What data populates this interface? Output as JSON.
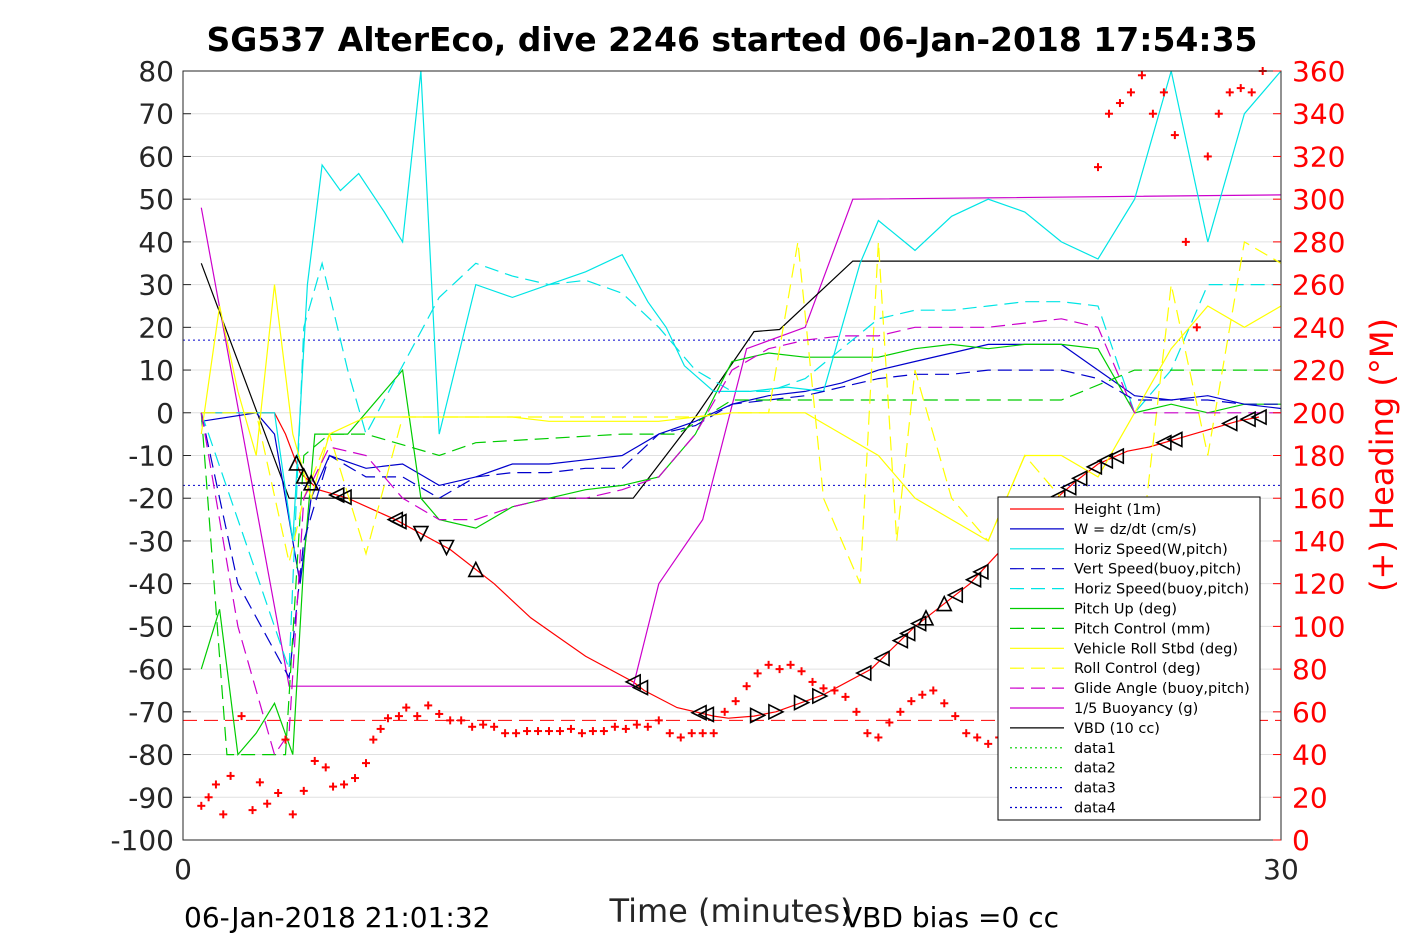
{
  "title": "SG537 AlterEco, dive 2246 started 06-Jan-2018 17:54:35",
  "footer": {
    "end_time": "06-Jan-2018 21:01:32",
    "vbd_bias": "VBD bias =0 cc"
  },
  "chart_data": {
    "type": "line",
    "xlabel": "Time (minutes)",
    "ylabel_right": "(+) Heading (°M)",
    "xlim": [
      0,
      30
    ],
    "ylim": [
      -100,
      80
    ],
    "ylim_right": [
      0,
      360
    ],
    "x_ticks": [
      "0",
      "30"
    ],
    "y_ticks": [
      "80",
      "70",
      "60",
      "50",
      "40",
      "30",
      "20",
      "10",
      "0",
      "-10",
      "-20",
      "-30",
      "-40",
      "-50",
      "-60",
      "-70",
      "-80",
      "-90",
      "-100"
    ],
    "y_tick_values": [
      80,
      70,
      60,
      50,
      40,
      30,
      20,
      10,
      0,
      -10,
      -20,
      -30,
      -40,
      -50,
      -60,
      -70,
      -80,
      -90,
      -100
    ],
    "y_right_ticks": [
      "360",
      "340",
      "320",
      "300",
      "280",
      "260",
      "240",
      "220",
      "200",
      "180",
      "160",
      "140",
      "120",
      "100",
      "80",
      "60",
      "40",
      "20",
      "0"
    ],
    "y_right_tick_values": [
      360,
      340,
      320,
      300,
      280,
      260,
      240,
      220,
      200,
      180,
      160,
      140,
      120,
      100,
      80,
      60,
      40,
      20,
      0
    ],
    "grid": true,
    "legend_position": "bottom-right",
    "legend": [
      {
        "label": "Height (1m)",
        "color": "#ff0000",
        "dash": "solid"
      },
      {
        "label": "W = dz/dt (cm/s)",
        "color": "#0000cc",
        "dash": "solid"
      },
      {
        "label": "Horiz Speed(W,pitch)",
        "color": "#00e5e5",
        "dash": "solid"
      },
      {
        "label": "Vert Speed(buoy,pitch)",
        "color": "#0000cc",
        "dash": "long"
      },
      {
        "label": "Horiz Speed(buoy,pitch)",
        "color": "#00e5e5",
        "dash": "long"
      },
      {
        "label": "Pitch Up (deg)",
        "color": "#00cc00",
        "dash": "solid"
      },
      {
        "label": "Pitch Control (mm)",
        "color": "#00cc00",
        "dash": "long"
      },
      {
        "label": "Vehicle Roll Stbd (deg)",
        "color": "#ffff00",
        "dash": "solid"
      },
      {
        "label": "Roll Control (deg)",
        "color": "#ffff00",
        "dash": "long"
      },
      {
        "label": "Glide Angle (buoy,pitch)",
        "color": "#cc00cc",
        "dash": "long"
      },
      {
        "label": "1/5 Buoyancy (g)",
        "color": "#cc00cc",
        "dash": "solid"
      },
      {
        "label": "VBD (10 cc)",
        "color": "#000000",
        "dash": "solid"
      },
      {
        "label": "data1",
        "color": "#00cc00",
        "dash": "dot"
      },
      {
        "label": "data2",
        "color": "#00cc00",
        "dash": "dot"
      },
      {
        "label": "data3",
        "color": "#0000cc",
        "dash": "dot"
      },
      {
        "label": "data4",
        "color": "#0000cc",
        "dash": "dot"
      }
    ],
    "series": [
      {
        "name": "Height (1m)",
        "color": "#ff0000",
        "dash": "solid",
        "axis": "left",
        "x": [
          0.5,
          2.5,
          2.8,
          3.2,
          3.7,
          4.5,
          5.8,
          7.3,
          8.5,
          9.5,
          11.0,
          12.3,
          12.6,
          13.5,
          14.5,
          14.9,
          15.6,
          16.2,
          17.5,
          18.8,
          20.0,
          21.5,
          22.8,
          24.4,
          25.0,
          25.8,
          26.4,
          27.2,
          28.8,
          29.4
        ],
        "y": [
          0,
          0,
          -5,
          -14,
          -18,
          -20,
          -25,
          -32,
          -40,
          -48,
          -57,
          -63,
          -65,
          -69,
          -71,
          -71.5,
          -71,
          -70,
          -66,
          -60,
          -50,
          -40,
          -28,
          -16,
          -12,
          -9,
          -8,
          -6,
          -2,
          -1
        ]
      },
      {
        "name": "1/5 Buoyancy (g)",
        "color": "#cc00cc",
        "dash": "solid",
        "axis": "left",
        "x": [
          0.5,
          2.9,
          12.3,
          13.0,
          14.2,
          15.4,
          17.0,
          18.3,
          30.0
        ],
        "y": [
          48,
          -64,
          -64,
          -40,
          -25,
          15,
          20,
          50,
          51
        ]
      },
      {
        "name": "VBD (10 cc)",
        "color": "#000000",
        "dash": "solid",
        "axis": "left",
        "x": [
          0.5,
          2.9,
          12.3,
          14.0,
          15.6,
          16.3,
          18.3,
          30.0
        ],
        "y": [
          35,
          -20,
          -20,
          -1,
          19,
          19.5,
          35.5,
          35.5
        ]
      },
      {
        "name": "W = dz/dt (cm/s)",
        "color": "#0000cc",
        "dash": "solid",
        "axis": "left",
        "x": [
          0.5,
          2.0,
          2.5,
          3.2,
          3.5,
          4.0,
          5.0,
          6.0,
          7.0,
          8.0,
          9.0,
          10.0,
          11.0,
          12.0,
          13.0,
          14.0,
          15.0,
          16.0,
          17.0,
          18.0,
          19.0,
          20.0,
          21.0,
          22.0,
          23.0,
          24.0,
          25.0,
          26.0,
          27.0,
          28.0,
          29.0,
          30.0
        ],
        "y": [
          -2,
          0,
          -5,
          -40,
          -20,
          -10,
          -13,
          -12,
          -17,
          -15,
          -12,
          -12,
          -11,
          -10,
          -5,
          -2,
          2,
          4,
          5,
          7,
          10,
          12,
          14,
          16,
          16,
          16,
          10,
          4,
          3,
          4,
          2,
          1
        ]
      },
      {
        "name": "Pitch Up (deg)",
        "color": "#00cc00",
        "dash": "solid",
        "axis": "left",
        "x": [
          0.5,
          1.0,
          1.5,
          2.0,
          2.5,
          3.0,
          3.3,
          3.6,
          4.5,
          5.5,
          6.0,
          6.5,
          7.0,
          8.0,
          9.0,
          10.0,
          11.0,
          12.0,
          13.0,
          14.0,
          15.0,
          16.0,
          17.0,
          18.0,
          19.0,
          20.0,
          21.0,
          22.0,
          23.0,
          24.0,
          25.0,
          26.0,
          27.0,
          28.0,
          29.0,
          30.0
        ],
        "y": [
          -60,
          -46,
          -80,
          -75,
          -68,
          -80,
          -35,
          -5,
          -5,
          5,
          10,
          -20,
          -25,
          -27,
          -22,
          -20,
          -18,
          -17,
          -15,
          -5,
          12,
          14,
          13,
          13,
          13,
          15,
          16,
          15,
          16,
          16,
          15,
          0,
          2,
          0,
          2,
          2
        ]
      },
      {
        "name": "Horiz Speed(W,pitch)",
        "color": "#00e5e5",
        "dash": "solid",
        "axis": "left",
        "x": [
          0.5,
          2.5,
          3.0,
          3.4,
          3.8,
          4.3,
          4.8,
          5.5,
          6.0,
          6.5,
          7.0,
          8.0,
          9.0,
          10.0,
          11.0,
          12.0,
          12.7,
          13.2,
          13.7,
          14.5,
          15.5,
          16.5,
          17.5,
          18.0,
          18.5,
          19.0,
          20.0,
          21.0,
          22.0,
          23.0,
          24.0,
          25.0,
          26.0,
          27.0,
          28.0,
          29.0,
          30.0
        ],
        "y": [
          0,
          0,
          -30,
          30,
          58,
          52,
          56,
          47,
          40,
          80,
          -5,
          30,
          27,
          30,
          33,
          37,
          26,
          20,
          11,
          5,
          5,
          6,
          5,
          20,
          35,
          45,
          38,
          46,
          50,
          47,
          40,
          36,
          50,
          80,
          40,
          70,
          80
        ]
      },
      {
        "name": "Horiz Speed(buoy,pitch)",
        "color": "#00e5e5",
        "dash": "long",
        "axis": "left",
        "x": [
          0.5,
          2.9,
          3.3,
          3.8,
          4.5,
          5.0,
          7.0,
          8.0,
          9.0,
          10.0,
          11.0,
          12.0,
          13.0,
          14.0,
          15.0,
          16.0,
          17.0,
          18.0,
          19.0,
          20.0,
          21.0,
          22.0,
          23.0,
          24.0,
          25.0,
          26.0,
          27.0,
          28.0,
          29.0,
          30.0
        ],
        "y": [
          0,
          -60,
          20,
          35,
          10,
          -5,
          27,
          35,
          32,
          30,
          31,
          28,
          20,
          10,
          5,
          5,
          8,
          15,
          22,
          24,
          24,
          25,
          26,
          26,
          25,
          0,
          10,
          30,
          30,
          30
        ]
      },
      {
        "name": "Vert Speed(buoy,pitch)",
        "color": "#0000cc",
        "dash": "long",
        "axis": "left",
        "x": [
          0.5,
          1.5,
          2.9,
          3.3,
          4.0,
          5.0,
          6.0,
          7.0,
          8.0,
          9.0,
          10.0,
          11.0,
          12.0,
          13.0,
          14.0,
          15.0,
          16.0,
          17.0,
          18.0,
          19.0,
          20.0,
          21.0,
          22.0,
          23.0,
          24.0,
          25.0,
          26.0,
          27.0,
          28.0,
          29.0,
          30.0
        ],
        "y": [
          0,
          -40,
          -62,
          -30,
          -10,
          -15,
          -15,
          -20,
          -15,
          -14,
          -14,
          -13,
          -13,
          -5,
          -3,
          2,
          3,
          4,
          6,
          8,
          9,
          9,
          10,
          10,
          10,
          8,
          3,
          3,
          3,
          2,
          2
        ]
      },
      {
        "name": "Pitch Control (mm)",
        "color": "#00cc00",
        "dash": "long",
        "axis": "left",
        "x": [
          0.5,
          1.2,
          2.8,
          3.3,
          4.0,
          5.0,
          7.0,
          8.0,
          10.0,
          12.0,
          13.5,
          15.0,
          16.0,
          18.0,
          20.0,
          22.0,
          24.0,
          26.0,
          28.0,
          30.0
        ],
        "y": [
          0,
          -80,
          -80,
          -10,
          -5,
          -5,
          -10,
          -7,
          -6,
          -5,
          -5,
          3,
          3,
          3,
          3,
          3,
          3,
          10,
          10,
          10
        ]
      },
      {
        "name": "Vehicle Roll Stbd (deg)",
        "color": "#ffff00",
        "dash": "solid",
        "axis": "left",
        "x": [
          0.5,
          1.0,
          1.5,
          2.0,
          2.5,
          3.0,
          3.5,
          4.0,
          5.0,
          6.0,
          7.0,
          8.0,
          9.0,
          10.0,
          11.0,
          12.0,
          13.0,
          14.0,
          15.0,
          16.0,
          17.0,
          18.0,
          19.0,
          20.0,
          21.0,
          22.0,
          23.0,
          24.0,
          25.0,
          26.0,
          27.0,
          28.0,
          29.0,
          30.0
        ],
        "y": [
          -5,
          25,
          5,
          -10,
          30,
          -5,
          -20,
          -5,
          -1,
          -1,
          -1,
          -1,
          -1,
          -2,
          -2,
          -2,
          -2,
          -1,
          0,
          0,
          0,
          -5,
          -10,
          -20,
          -25,
          -30,
          -10,
          -10,
          -15,
          0,
          15,
          25,
          20,
          25
        ]
      },
      {
        "name": "Roll Control (deg)",
        "color": "#ffff00",
        "dash": "long",
        "axis": "left",
        "x": [
          0.5,
          2.0,
          2.9,
          3.3,
          4.0,
          5.0,
          6.0,
          8.0,
          10.0,
          12.0,
          14.0,
          15.0,
          16.0,
          16.8,
          17.5,
          18.5,
          19.0,
          19.5,
          20.0,
          21.0,
          22.0,
          23.0,
          24.0,
          25.0,
          26.0,
          27.0,
          28.0,
          29.0,
          30.0
        ],
        "y": [
          0,
          0,
          -35,
          -20,
          -5,
          -33,
          -1,
          -1,
          -1,
          -1,
          -1,
          0,
          0,
          40,
          -20,
          -40,
          40,
          -30,
          10,
          -20,
          -30,
          -10,
          -20,
          -20,
          -45,
          30,
          -10,
          40,
          35
        ]
      },
      {
        "name": "Glide Angle (buoy,pitch)",
        "color": "#cc00cc",
        "dash": "long",
        "axis": "left",
        "x": [
          0.5,
          1.5,
          2.5,
          2.9,
          3.3,
          4.0,
          5.0,
          6.0,
          7.0,
          8.0,
          9.0,
          10.0,
          11.0,
          12.0,
          13.0,
          14.0,
          15.0,
          16.0,
          17.0,
          18.0,
          19.0,
          20.0,
          21.0,
          22.0,
          23.0,
          24.0,
          25.0,
          26.0,
          27.0,
          28.0,
          29.0,
          30.0
        ],
        "y": [
          0,
          -50,
          -80,
          -75,
          -20,
          -8,
          -10,
          -20,
          -25,
          -25,
          -22,
          -20,
          -20,
          -18,
          -15,
          -5,
          10,
          15,
          17,
          18,
          18,
          20,
          20,
          20,
          21,
          22,
          20,
          0,
          0,
          0,
          0,
          0
        ]
      }
    ],
    "reference_lines": [
      {
        "name": "data3",
        "color": "#0000cc",
        "dash": "dot",
        "y": 17
      },
      {
        "name": "data4",
        "color": "#0000cc",
        "dash": "dot",
        "y": -17
      },
      {
        "name": "heading reference",
        "color": "#ff0000",
        "dash": "long",
        "y": -72
      }
    ],
    "heading_points": {
      "name": "Heading",
      "color": "#ff0000",
      "axis": "right",
      "marker": "+",
      "x": [
        0.5,
        0.7,
        0.9,
        1.1,
        1.3,
        1.6,
        1.9,
        2.1,
        2.3,
        2.6,
        2.8,
        3.0,
        3.3,
        3.6,
        3.9,
        4.1,
        4.4,
        4.7,
        5.0,
        5.2,
        5.4,
        5.6,
        5.9,
        6.1,
        6.4,
        6.7,
        7.0,
        7.3,
        7.6,
        7.9,
        8.2,
        8.5,
        8.8,
        9.1,
        9.4,
        9.7,
        10.0,
        10.3,
        10.6,
        10.9,
        11.2,
        11.5,
        11.8,
        12.1,
        12.4,
        12.7,
        13.0,
        13.3,
        13.6,
        13.9,
        14.2,
        14.5,
        14.8,
        15.1,
        15.4,
        15.7,
        16.0,
        16.3,
        16.6,
        16.9,
        17.2,
        17.5,
        17.8,
        18.1,
        18.4,
        18.7,
        19.0,
        19.3,
        19.6,
        19.9,
        20.2,
        20.5,
        20.8,
        21.1,
        21.4,
        21.7,
        22.0,
        22.3,
        22.6,
        22.9,
        23.2,
        23.5,
        23.8,
        24.1,
        24.4,
        24.7,
        25.0,
        25.3,
        25.6,
        25.9,
        26.2,
        26.5,
        26.8,
        27.1,
        27.4,
        27.7,
        28.0,
        28.3,
        28.6,
        28.9,
        29.2,
        29.5
      ],
      "y": [
        16,
        20,
        26,
        12,
        30,
        58,
        14,
        27,
        17,
        22,
        47,
        12,
        23,
        37,
        34,
        25,
        26,
        29,
        36,
        47,
        52,
        57,
        58,
        62,
        58,
        63,
        59,
        56,
        56,
        53,
        54,
        53,
        50,
        50,
        51,
        51,
        51,
        51,
        52,
        50,
        51,
        51,
        53,
        52,
        54,
        53,
        56,
        50,
        48,
        50,
        50,
        50,
        60,
        65,
        72,
        78,
        82,
        80,
        82,
        79,
        74,
        71,
        70,
        67,
        60,
        50,
        48,
        55,
        60,
        65,
        68,
        70,
        64,
        58,
        50,
        48,
        45,
        48,
        56,
        64,
        70,
        80,
        90,
        100,
        50,
        56,
        315,
        340,
        345,
        350,
        358,
        340,
        350,
        330,
        280,
        240,
        320,
        340,
        350,
        352,
        350,
        360
      ]
    },
    "triangle_markers_on_height": [
      3.1,
      3.3,
      3.5,
      4.2,
      4.4,
      5.8,
      5.9,
      6.5,
      7.2,
      8.0,
      12.3,
      12.5,
      14.1,
      14.3,
      15.7,
      16.2,
      16.9,
      17.4,
      18.6,
      19.1,
      19.6,
      19.8,
      20.1,
      20.3,
      20.8,
      21.1,
      21.6,
      21.8,
      22.5,
      22.8,
      23.6,
      23.9,
      24.2,
      24.5,
      24.9,
      25.2,
      25.5,
      26.8,
      27.1,
      28.6,
      29.1,
      29.4
    ],
    "triangle_dirs": [
      "up",
      "up",
      "up",
      "left",
      "left",
      "left",
      "left",
      "down",
      "down",
      "up",
      "left",
      "left",
      "left",
      "left",
      "right",
      "right",
      "right",
      "right",
      "left",
      "left",
      "left",
      "left",
      "left",
      "up",
      "up",
      "left",
      "left",
      "left",
      "left",
      "left",
      "left",
      "left",
      "left",
      "left",
      "left",
      "left",
      "left",
      "left",
      "left",
      "left",
      "left",
      "left"
    ]
  }
}
